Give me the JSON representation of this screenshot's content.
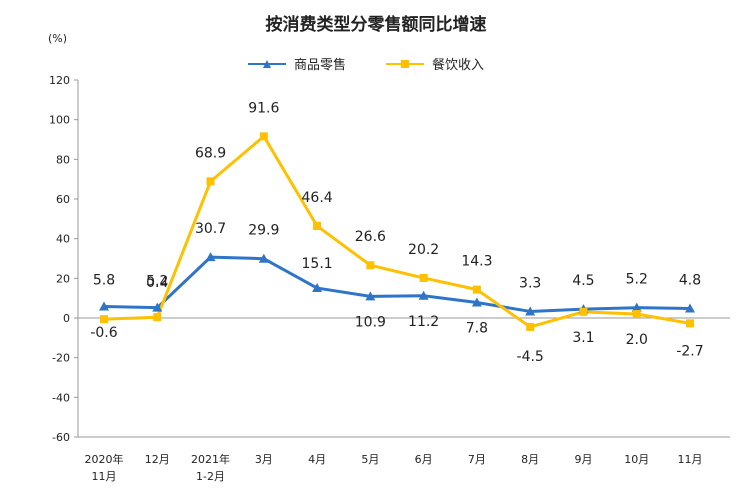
{
  "chart_data": {
    "type": "line",
    "title": "按消费类型分零售额同比增速",
    "ylabel": "(%)",
    "xlabel": "",
    "ylim": [
      -60,
      120
    ],
    "yticks": [
      "120",
      "100",
      "80",
      "60",
      "40",
      "20",
      "0",
      "-20",
      "-40",
      "-60"
    ],
    "categories": [
      [
        "2020年",
        "11月"
      ],
      [
        "12月"
      ],
      [
        "2021年",
        "1-2月"
      ],
      [
        "3月"
      ],
      [
        "4月"
      ],
      [
        "5月"
      ],
      [
        "6月"
      ],
      [
        "7月"
      ],
      [
        "8月"
      ],
      [
        "9月"
      ],
      [
        "10月"
      ],
      [
        "11月"
      ]
    ],
    "series": [
      {
        "name": "商品零售",
        "color": "#2E75C8",
        "marker": "triangle",
        "values": [
          5.8,
          5.2,
          30.7,
          29.9,
          15.1,
          10.9,
          11.2,
          7.8,
          3.3,
          4.5,
          5.2,
          4.8
        ],
        "labels": [
          "5.8",
          "5.2",
          "30.7",
          "29.9",
          "15.1",
          "10.9",
          "11.2",
          "7.8",
          "3.3",
          "4.5",
          "5.2",
          "4.8"
        ]
      },
      {
        "name": "餐饮收入",
        "color": "#FFC000",
        "marker": "square",
        "values": [
          -0.6,
          0.4,
          68.9,
          91.6,
          46.4,
          26.6,
          20.2,
          14.3,
          -4.5,
          3.1,
          2.0,
          -2.7
        ],
        "labels": [
          "-0.6",
          "0.4",
          "68.9",
          "91.6",
          "46.4",
          "26.6",
          "20.2",
          "14.3",
          "-4.5",
          "3.1",
          "2.0",
          "-2.7"
        ]
      }
    ]
  }
}
